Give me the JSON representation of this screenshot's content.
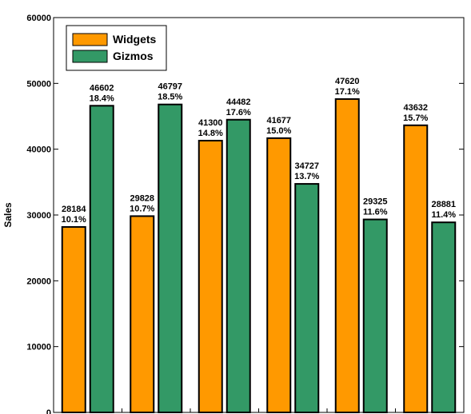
{
  "chart_data": {
    "type": "bar",
    "ylabel": "Sales",
    "ylim": [
      0,
      60000
    ],
    "yticks": [
      0,
      10000,
      20000,
      30000,
      40000,
      50000,
      60000
    ],
    "categories": [
      "",
      "",
      "",
      "",
      "",
      ""
    ],
    "legend_position": "top-left",
    "series": [
      {
        "name": "Widgets",
        "color": "#ff9900",
        "values": [
          28184,
          29828,
          41300,
          41677,
          47620,
          43632
        ],
        "percent_labels": [
          "10.1%",
          "10.7%",
          "14.8%",
          "15.0%",
          "17.1%",
          "15.7%"
        ]
      },
      {
        "name": "Gizmos",
        "color": "#339966",
        "values": [
          46602,
          46797,
          44482,
          34727,
          29325,
          28881
        ],
        "percent_labels": [
          "18.4%",
          "18.5%",
          "17.6%",
          "13.7%",
          "11.6%",
          "11.4%"
        ]
      }
    ]
  }
}
